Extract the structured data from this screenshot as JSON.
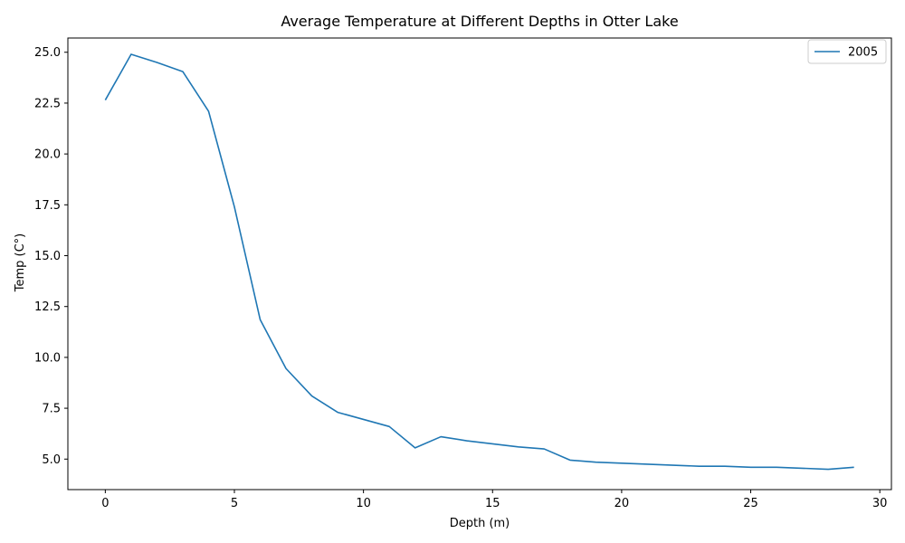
{
  "chart_data": {
    "type": "line",
    "title": "Average Temperature at Different Depths in Otter Lake",
    "xlabel": "Depth (m)",
    "ylabel": "Temp (C°)",
    "xlim": [
      -1.45,
      30.45
    ],
    "ylim": [
      3.5,
      25.7
    ],
    "xticks": [
      0,
      5,
      10,
      15,
      20,
      25,
      30
    ],
    "yticks": [
      5.0,
      7.5,
      10.0,
      12.5,
      15.0,
      17.5,
      20.0,
      22.5,
      25.0
    ],
    "xtick_labels": [
      "0",
      "5",
      "10",
      "15",
      "20",
      "25",
      "30"
    ],
    "ytick_labels": [
      "5.0",
      "7.5",
      "10.0",
      "12.5",
      "15.0",
      "17.5",
      "20.0",
      "22.5",
      "25.0"
    ],
    "grid": false,
    "legend_position": "top-right",
    "series": [
      {
        "name": "2005",
        "color": "#1f77b4",
        "x": [
          0,
          1,
          2,
          3,
          4,
          5,
          6,
          7,
          8,
          9,
          10,
          11,
          12,
          13,
          14,
          15,
          16,
          17,
          18,
          19,
          20,
          21,
          22,
          23,
          24,
          25,
          26,
          27,
          28,
          29
        ],
        "y": [
          22.65,
          24.9,
          24.5,
          24.05,
          22.1,
          17.4,
          11.85,
          9.45,
          8.1,
          7.3,
          6.95,
          6.6,
          5.55,
          6.1,
          5.9,
          5.75,
          5.6,
          5.5,
          4.95,
          4.85,
          4.8,
          4.75,
          4.7,
          4.65,
          4.65,
          4.6,
          4.6,
          4.55,
          4.5,
          4.6
        ]
      }
    ]
  }
}
